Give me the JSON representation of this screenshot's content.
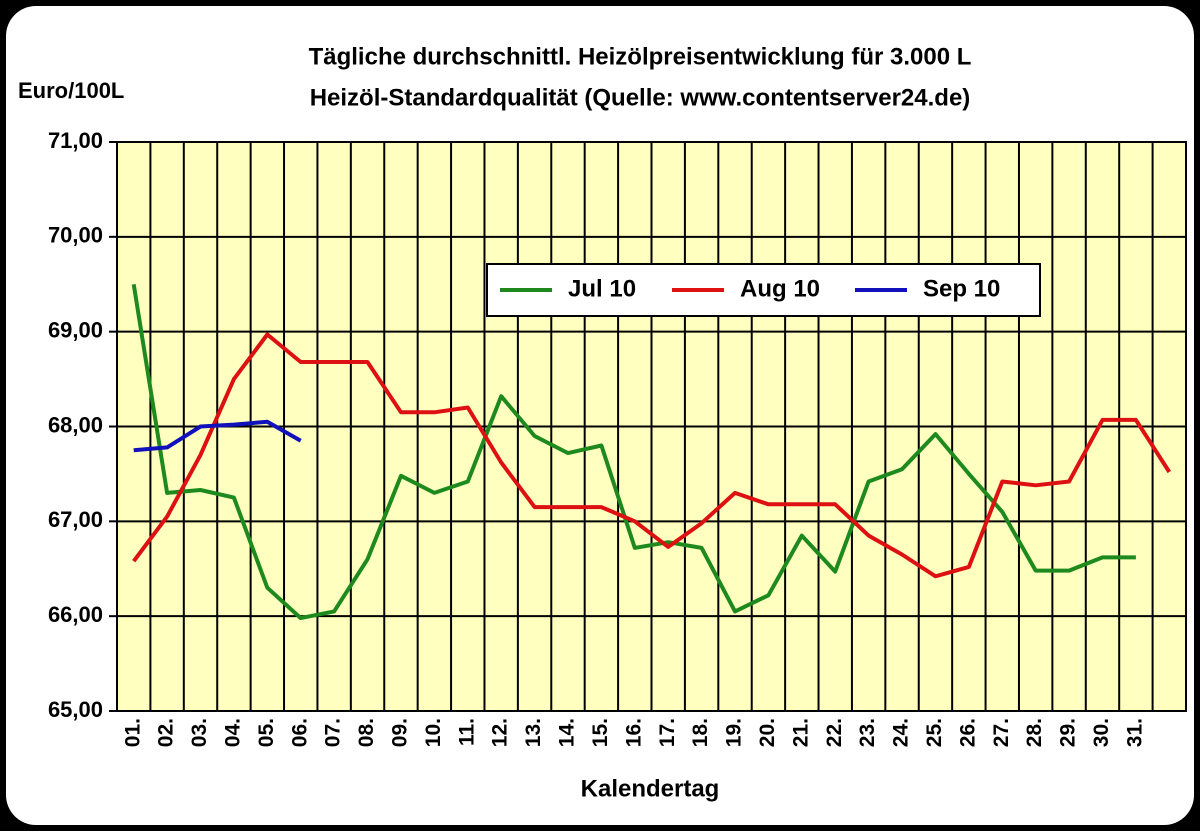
{
  "chart_data": {
    "type": "line",
    "title": "Tägliche durchschnittl. Heizölpreisentwicklung für 3.000 L",
    "subtitle": "Heizöl-Standardqualität (Quelle: www.contentserver24.de)",
    "y_label": "Euro/100L",
    "x_label": "Kalendertag",
    "categories": [
      "01.",
      "02.",
      "03.",
      "04.",
      "05.",
      "06.",
      "07.",
      "08.",
      "09.",
      "10.",
      "11.",
      "12.",
      "13.",
      "14.",
      "15.",
      "16.",
      "17.",
      "18.",
      "19.",
      "20.",
      "21.",
      "22.",
      "23.",
      "24.",
      "25.",
      "26.",
      "27.",
      "28.",
      "29.",
      "30.",
      "31.",
      null
    ],
    "series": [
      {
        "name": "Jul 10",
        "color": "#1e8a1e",
        "values": [
          69.5,
          67.3,
          67.33,
          67.25,
          66.3,
          65.98,
          66.05,
          66.6,
          67.48,
          67.3,
          67.42,
          68.32,
          67.9,
          67.72,
          67.8,
          66.72,
          66.78,
          66.72,
          66.05,
          66.22,
          66.85,
          66.47,
          67.42,
          67.55,
          67.92,
          67.5,
          67.1,
          66.48,
          66.48,
          66.62,
          66.62,
          null
        ]
      },
      {
        "name": "Aug 10",
        "color": "#dd1111",
        "values": [
          66.58,
          67.05,
          67.7,
          68.5,
          68.97,
          68.68,
          68.68,
          68.68,
          68.15,
          68.15,
          68.2,
          67.62,
          67.15,
          67.15,
          67.15,
          67.0,
          66.73,
          66.98,
          67.3,
          67.18,
          67.18,
          67.18,
          66.85,
          66.65,
          66.42,
          66.52,
          67.42,
          67.38,
          67.42,
          68.07,
          68.07,
          67.52
        ]
      },
      {
        "name": "Sep 10",
        "color": "#1111bb",
        "values": [
          67.75,
          67.78,
          68.0,
          68.02,
          68.05,
          67.85,
          null,
          null,
          null,
          null,
          null,
          null,
          null,
          null,
          null,
          null,
          null,
          null,
          null,
          null,
          null,
          null,
          null,
          null,
          null,
          null,
          null,
          null,
          null,
          null,
          null,
          null
        ]
      }
    ],
    "ylim": [
      65,
      71
    ],
    "yticks": [
      {
        "value": 65,
        "label": "65,00"
      },
      {
        "value": 66,
        "label": "66,00"
      },
      {
        "value": 67,
        "label": "67,00"
      },
      {
        "value": 68,
        "label": "68,00"
      },
      {
        "value": 69,
        "label": "69,00"
      },
      {
        "value": 70,
        "label": "70,00"
      },
      {
        "value": 71,
        "label": "71,00"
      }
    ],
    "grid": true,
    "plot_background": "#ffffc0"
  }
}
